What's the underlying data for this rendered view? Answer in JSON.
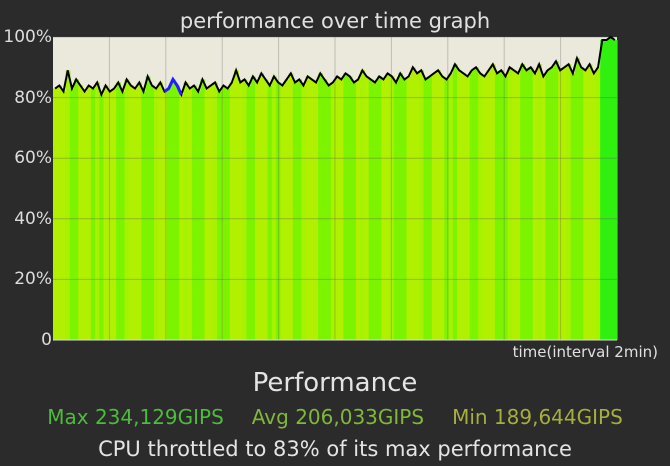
{
  "colors": {
    "background": "#2b2b2b",
    "plot_background": "#ebe8dc",
    "bar_yellow_green": "#b0f000",
    "bar_green": "#7cf400",
    "bar_bright_green": "#30f010",
    "line": "#000000",
    "line_marker": "#2020ff",
    "max_text": "#4dbb3c",
    "avg_text": "#80b83a",
    "min_text": "#a6ae3c"
  },
  "chart_data": {
    "type": "area",
    "title": "performance over time graph",
    "xlabel": "time(interval 2min)",
    "ylabel": "",
    "ylim": [
      0,
      100
    ],
    "y_ticks": [
      "0",
      "20%",
      "40%",
      "60%",
      "80%",
      "100%"
    ],
    "grid": true,
    "series": [
      {
        "values": [
          83,
          84,
          82,
          89,
          83,
          86,
          84,
          82,
          84,
          83,
          85,
          81,
          84,
          82,
          83,
          85,
          82,
          86,
          84,
          83,
          85,
          82,
          87,
          84,
          83,
          85,
          82,
          83,
          86,
          84,
          81,
          85,
          83,
          84,
          82,
          86,
          83,
          84,
          85,
          82,
          84,
          83,
          85,
          89,
          85,
          86,
          84,
          87,
          85,
          88,
          86,
          84,
          87,
          85,
          84,
          86,
          88,
          85,
          86,
          84,
          87,
          86,
          85,
          88,
          86,
          84,
          85,
          87,
          86,
          88,
          87,
          85,
          86,
          89,
          87,
          86,
          85,
          87,
          86,
          88,
          87,
          85,
          88,
          86,
          87,
          90,
          88,
          89,
          86,
          87,
          88,
          89,
          87,
          86,
          88,
          91,
          89,
          88,
          87,
          89,
          90,
          88,
          87,
          89,
          91,
          88,
          89,
          87,
          90,
          89,
          88,
          91,
          89,
          90,
          88,
          91,
          87,
          89,
          90,
          92,
          89,
          90,
          91,
          88,
          93,
          90,
          89,
          91,
          88,
          90,
          99,
          99,
          100,
          99
        ]
      }
    ]
  },
  "stats": {
    "heading": "Performance",
    "max": "Max 234,129GIPS",
    "avg": "Avg 206,033GIPS",
    "min": "Min 189,644GIPS",
    "throttle": "CPU throttled to 83% of its max performance"
  }
}
